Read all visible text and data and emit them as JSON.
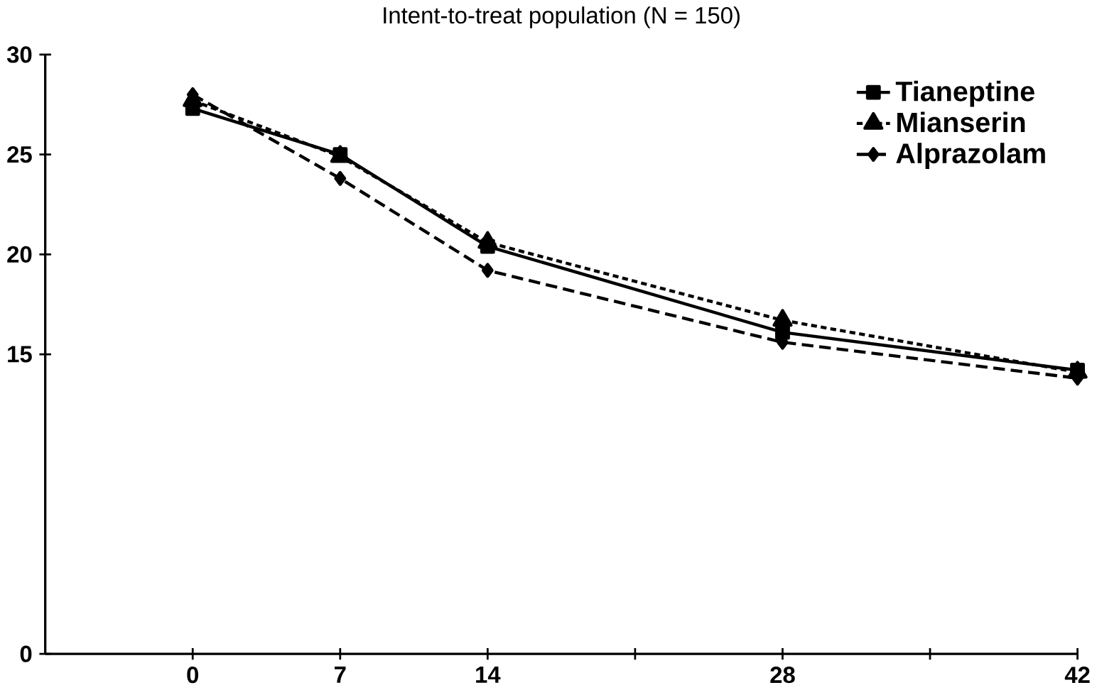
{
  "chart_data": {
    "type": "line",
    "title": "Intent-to-treat population (N = 150)",
    "x": [
      0,
      7,
      14,
      28,
      42
    ],
    "xlim": [
      -7,
      42
    ],
    "xticks": [
      0,
      7,
      14,
      {
        "value": 21,
        "label": null
      },
      28,
      {
        "value": 35,
        "label": null
      },
      42
    ],
    "ylim": [
      0,
      30
    ],
    "yticks": [
      0,
      15,
      20,
      25,
      30
    ],
    "legend": "top right",
    "grid": false,
    "series": [
      {
        "name": "Tianeptine",
        "color": "#000000",
        "marker": "square",
        "line_style": "solid",
        "values": [
          27.3,
          25.0,
          20.4,
          16.1,
          14.2
        ]
      },
      {
        "name": "Mianserin",
        "color": "#000000",
        "marker": "triangle",
        "line_style": "dotted",
        "values": [
          27.7,
          24.9,
          20.6,
          16.7,
          14.1
        ]
      },
      {
        "name": "Alprazolam",
        "color": "#000000",
        "marker": "diamond",
        "line_style": "dashed",
        "values": [
          28.0,
          23.8,
          19.2,
          15.6,
          13.8
        ]
      }
    ]
  }
}
